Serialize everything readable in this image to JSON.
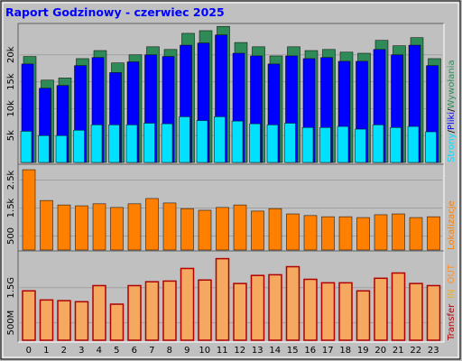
{
  "chart_data": [
    {
      "type": "bar",
      "title": "Raport Godzinowy -  czerwiec 2025",
      "ylim": [
        0,
        25500
      ],
      "yticks": [
        {
          "value": 5000,
          "label": "5k"
        },
        {
          "value": 10000,
          "label": "10k"
        },
        {
          "value": 15000,
          "label": "15k"
        },
        {
          "value": 20000,
          "label": "20k"
        }
      ],
      "legend_separator": "/",
      "series": [
        {
          "name": "Wywołania",
          "color": "#2e8b57",
          "values": [
            19700,
            15300,
            15700,
            19300,
            20800,
            18500,
            20000,
            21500,
            21000,
            24000,
            24500,
            25300,
            22300,
            21500,
            19800,
            21500,
            20800,
            21000,
            20500,
            20300,
            22700,
            21700,
            23200,
            19300
          ]
        },
        {
          "name": "Pliki",
          "color": "#0000ff",
          "values": [
            18300,
            13800,
            14300,
            18000,
            19500,
            16700,
            18700,
            20000,
            19700,
            21800,
            22200,
            23700,
            20300,
            19800,
            18300,
            19800,
            19300,
            19500,
            18800,
            18800,
            21000,
            20000,
            21800,
            18000
          ]
        },
        {
          "name": "Strony",
          "color": "#00e0ff",
          "values": [
            5800,
            5000,
            5000,
            6000,
            7000,
            7000,
            7000,
            7300,
            7200,
            8500,
            7800,
            8500,
            7700,
            7200,
            7000,
            7300,
            6500,
            6500,
            6700,
            6200,
            7000,
            6500,
            6700,
            5700
          ]
        }
      ]
    },
    {
      "type": "bar",
      "ylim": [
        0,
        3000
      ],
      "yticks": [
        500,
        {
          "value": 1500,
          "label": "1.5k"
        },
        {
          "value": 2500,
          "label": "2.5k"
        }
      ],
      "series": [
        {
          "name": "Lokalizacje",
          "color": "#ff8000",
          "values": [
            2870,
            1770,
            1610,
            1580,
            1650,
            1520,
            1650,
            1840,
            1680,
            1480,
            1420,
            1520,
            1610,
            1390,
            1480,
            1290,
            1230,
            1190,
            1190,
            1160,
            1260,
            1290,
            1160,
            1190
          ]
        }
      ]
    },
    {
      "type": "bar",
      "ylim": [
        0,
        2.5
      ],
      "yticks": [
        {
          "value": 0.5,
          "label": "500M"
        },
        {
          "value": 1.5,
          "label": "1.5G"
        }
      ],
      "categories": [
        "0",
        "1",
        "2",
        "3",
        "4",
        "5",
        "6",
        "7",
        "8",
        "9",
        "10",
        "11",
        "12",
        "13",
        "14",
        "15",
        "16",
        "17",
        "18",
        "19",
        "20",
        "21",
        "22",
        "23"
      ],
      "legend_extra": [
        {
          "text": "IN",
          "color": "#e8b030"
        },
        {
          "text": "OUT",
          "color": "#ff9030"
        }
      ],
      "series": [
        {
          "name": "Transfer",
          "color": "#b00000",
          "fill": "#f4a860",
          "values": [
            1.41,
            1.15,
            1.13,
            1.1,
            1.56,
            1.03,
            1.56,
            1.67,
            1.69,
            2.05,
            1.72,
            2.33,
            1.62,
            1.85,
            1.87,
            2.1,
            1.74,
            1.64,
            1.64,
            1.41,
            1.77,
            1.92,
            1.62,
            1.56
          ]
        }
      ]
    }
  ]
}
